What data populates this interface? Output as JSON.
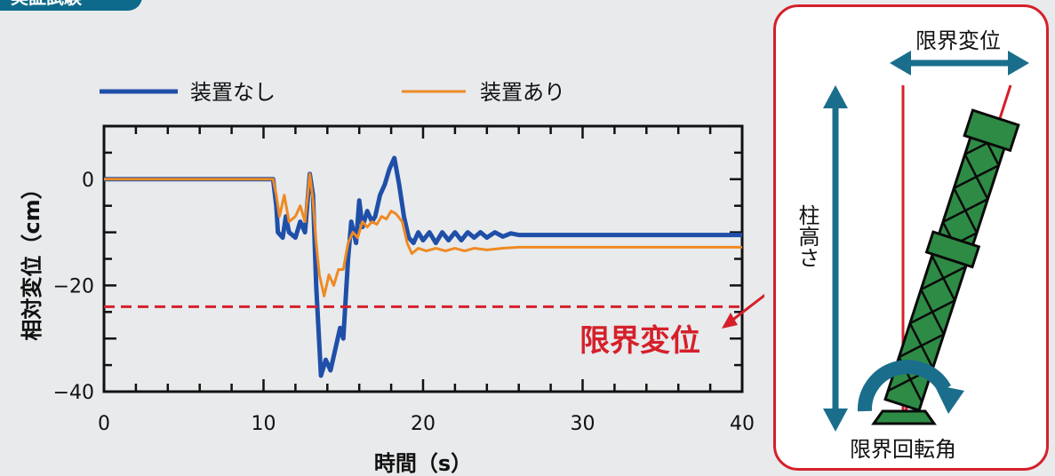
{
  "header_tag": "実証試験",
  "chart_data": {
    "type": "line",
    "xlabel": "時間（s）",
    "ylabel": "相対変位（cm）",
    "xlim": [
      0,
      40
    ],
    "ylim": [
      -40,
      10
    ],
    "x_ticks": [
      "0",
      "10",
      "20",
      "30",
      "40"
    ],
    "y_ticks": [
      "0",
      "−20",
      "−40"
    ],
    "grid": false,
    "legend_position": "top",
    "threshold": {
      "label": "限界変位",
      "value": -24,
      "color": "#d5202a"
    },
    "series": [
      {
        "name": "装置なし",
        "color": "#1f4fa8",
        "points": [
          [
            0,
            0
          ],
          [
            10,
            0
          ],
          [
            10.6,
            0
          ],
          [
            10.8,
            -5
          ],
          [
            10.9,
            -10
          ],
          [
            11.2,
            -11
          ],
          [
            11.4,
            -7
          ],
          [
            11.6,
            -10
          ],
          [
            12.0,
            -11
          ],
          [
            12.3,
            -8
          ],
          [
            12.6,
            -10
          ],
          [
            12.9,
            1
          ],
          [
            13.1,
            -3
          ],
          [
            13.3,
            -20
          ],
          [
            13.6,
            -37
          ],
          [
            13.9,
            -34
          ],
          [
            14.2,
            -36
          ],
          [
            14.5,
            -32
          ],
          [
            14.8,
            -28
          ],
          [
            15.0,
            -30
          ],
          [
            15.3,
            -15
          ],
          [
            15.5,
            -8
          ],
          [
            15.8,
            -12
          ],
          [
            16.0,
            -4
          ],
          [
            16.2,
            -9
          ],
          [
            16.5,
            -6
          ],
          [
            16.8,
            -8
          ],
          [
            17.0,
            -7
          ],
          [
            17.3,
            -3
          ],
          [
            17.6,
            -1
          ],
          [
            17.9,
            2
          ],
          [
            18.2,
            4
          ],
          [
            18.5,
            -1
          ],
          [
            18.8,
            -7
          ],
          [
            19.1,
            -11
          ],
          [
            19.4,
            -12
          ],
          [
            19.7,
            -10
          ],
          [
            20.0,
            -11.5
          ],
          [
            20.4,
            -10
          ],
          [
            20.8,
            -12
          ],
          [
            21.2,
            -10
          ],
          [
            21.6,
            -11.5
          ],
          [
            22.0,
            -10
          ],
          [
            22.4,
            -11.5
          ],
          [
            22.8,
            -10
          ],
          [
            23.2,
            -11
          ],
          [
            23.6,
            -10
          ],
          [
            24.0,
            -11
          ],
          [
            24.5,
            -10
          ],
          [
            25.0,
            -10.8
          ],
          [
            25.5,
            -10.2
          ],
          [
            26,
            -10.5
          ],
          [
            30,
            -10.5
          ],
          [
            40,
            -10.5
          ]
        ]
      },
      {
        "name": "装置あり",
        "color": "#ee8a23",
        "points": [
          [
            0,
            0
          ],
          [
            10,
            0
          ],
          [
            10.6,
            0
          ],
          [
            10.8,
            -3
          ],
          [
            11.0,
            -7
          ],
          [
            11.3,
            -3
          ],
          [
            11.6,
            -8
          ],
          [
            12.0,
            -7
          ],
          [
            12.3,
            -5
          ],
          [
            12.6,
            -8
          ],
          [
            12.9,
            1
          ],
          [
            13.1,
            -4
          ],
          [
            13.3,
            -12
          ],
          [
            13.5,
            -18
          ],
          [
            13.8,
            -22
          ],
          [
            14.1,
            -18
          ],
          [
            14.4,
            -20
          ],
          [
            14.7,
            -17
          ],
          [
            15.0,
            -17
          ],
          [
            15.3,
            -12
          ],
          [
            15.6,
            -10
          ],
          [
            15.9,
            -11
          ],
          [
            16.2,
            -8
          ],
          [
            16.5,
            -9
          ],
          [
            16.8,
            -8
          ],
          [
            17.1,
            -8.5
          ],
          [
            17.4,
            -7
          ],
          [
            17.7,
            -7.5
          ],
          [
            18.0,
            -6
          ],
          [
            18.3,
            -6.5
          ],
          [
            18.7,
            -8
          ],
          [
            19.0,
            -12
          ],
          [
            19.3,
            -14
          ],
          [
            19.7,
            -13
          ],
          [
            20.2,
            -13.5
          ],
          [
            20.8,
            -13
          ],
          [
            21.4,
            -13.5
          ],
          [
            22.0,
            -13
          ],
          [
            22.6,
            -13.5
          ],
          [
            23.2,
            -13
          ],
          [
            24.0,
            -13.3
          ],
          [
            25,
            -13
          ],
          [
            26,
            -12.8
          ],
          [
            30,
            -12.8
          ],
          [
            40,
            -12.8
          ]
        ]
      }
    ]
  },
  "diagram": {
    "limit_displacement_label": "限界変位",
    "column_height_label": "柱高さ",
    "limit_rotation_label": "限界回転角"
  },
  "colors": {
    "arrow_teal": "#1a6e8c",
    "tower_green": "#2e8b45",
    "red": "#d5202a"
  }
}
